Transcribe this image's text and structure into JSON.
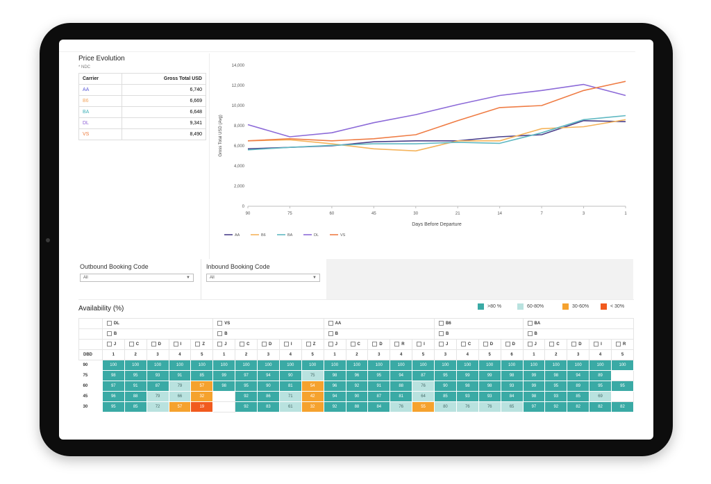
{
  "price_evolution": {
    "title": "Price Evolution",
    "note": "* NDC",
    "headers": {
      "carrier": "Carrier",
      "gross": "Gross Total USD"
    },
    "rows": [
      {
        "carrier": "AA",
        "value": "6,740",
        "color": "#5b5bd6"
      },
      {
        "carrier": "B6",
        "value": "6,669",
        "color": "#f2a55f"
      },
      {
        "carrier": "BA",
        "value": "6,648",
        "color": "#3fb0b8"
      },
      {
        "carrier": "DL",
        "value": "9,341",
        "color": "#8b5cd6"
      },
      {
        "carrier": "VS",
        "value": "8,490",
        "color": "#ee7b3c"
      }
    ]
  },
  "chart_data": {
    "type": "line",
    "title": "",
    "xlabel": "Days Before Departure",
    "ylabel": "Gross Total USD (Avg)",
    "x": [
      "90",
      "75",
      "60",
      "45",
      "30",
      "21",
      "14",
      "7",
      "3",
      "1"
    ],
    "ylim": [
      0,
      14000
    ],
    "yticks": [
      "0",
      "2,000",
      "4,000",
      "6,000",
      "8,000",
      "10,000",
      "12,000",
      "14,000"
    ],
    "legend_position": "bottom-left",
    "grid": false,
    "series": [
      {
        "name": "AA",
        "color": "#4a3f8a",
        "values": [
          5700,
          5850,
          6000,
          6400,
          6500,
          6500,
          6900,
          7100,
          8500,
          8400
        ]
      },
      {
        "name": "B6",
        "color": "#f5b35a",
        "values": [
          6500,
          6600,
          6200,
          5700,
          5500,
          6500,
          6500,
          7700,
          7900,
          8600
        ]
      },
      {
        "name": "BA",
        "color": "#5fb8c2",
        "values": [
          5600,
          5850,
          6050,
          6200,
          6200,
          6350,
          6250,
          7300,
          8600,
          9000
        ]
      },
      {
        "name": "DL",
        "color": "#8c6ad8",
        "values": [
          8100,
          6900,
          7300,
          8300,
          9100,
          10100,
          11000,
          11500,
          12100,
          11000
        ]
      },
      {
        "name": "VS",
        "color": "#ef7c44",
        "values": [
          6500,
          6700,
          6500,
          6700,
          7100,
          8500,
          9800,
          10000,
          11500,
          12400
        ]
      }
    ]
  },
  "booking": {
    "outbound_label": "Outbound Booking Code",
    "outbound_value": "All",
    "inbound_label": "Inbound Booking Code",
    "inbound_value": "All"
  },
  "availability": {
    "title": "Availability (%)",
    "legend": [
      {
        "label": ">80 %",
        "color": "#3aaaa5"
      },
      {
        "label": "60-80%",
        "color": "#b9e2df"
      },
      {
        "label": "30-60%",
        "color": "#f5a22e"
      },
      {
        "label": "< 30%",
        "color": "#f15a1e"
      }
    ],
    "dbd_label": "DBD",
    "carriers": [
      {
        "name": "DL",
        "sub": "B",
        "codes": [
          "J",
          "C",
          "D",
          "I",
          "Z"
        ],
        "nums": [
          "1",
          "2",
          "3",
          "4",
          "5"
        ]
      },
      {
        "name": "VS",
        "sub": "B",
        "codes": [
          "J",
          "C",
          "D",
          "I",
          "Z"
        ],
        "nums": [
          "1",
          "2",
          "3",
          "4",
          "5"
        ]
      },
      {
        "name": "AA",
        "sub": "B",
        "codes": [
          "J",
          "C",
          "D",
          "R",
          "I"
        ],
        "nums": [
          "1",
          "2",
          "3",
          "4",
          "5"
        ]
      },
      {
        "name": "B6",
        "sub": "B",
        "codes": [
          "J",
          "C",
          "D"
        ],
        "nums": [
          "4",
          "5",
          "6"
        ],
        "lead": [
          "3"
        ],
        "lead_codes": [
          "J"
        ]
      },
      {
        "name": "BA",
        "sub": "B",
        "codes": [
          "J",
          "C",
          "D",
          "I",
          "R"
        ],
        "nums": [
          "1",
          "2",
          "3",
          "4",
          "5"
        ]
      }
    ],
    "columns": [
      "J",
      "C",
      "D",
      "I",
      "Z",
      "J",
      "C",
      "D",
      "I",
      "Z",
      "J",
      "C",
      "D",
      "R",
      "I",
      "J",
      "C",
      "D",
      "D",
      "J",
      "C",
      "D",
      "I",
      "R"
    ],
    "column_nums": [
      "1",
      "2",
      "3",
      "4",
      "5",
      "1",
      "2",
      "3",
      "4",
      "5",
      "1",
      "2",
      "3",
      "4",
      "5",
      "3",
      "4",
      "5",
      "6",
      "1",
      "2",
      "3",
      "4",
      "5"
    ],
    "rows": [
      {
        "dbd": "90",
        "cells": [
          "100",
          "100",
          "100",
          "100",
          "100",
          "100",
          "100",
          "100",
          "100",
          "100",
          "100",
          "100",
          "100",
          "100",
          "100",
          "100",
          "100",
          "100",
          "100",
          "100",
          "100",
          "100",
          "100",
          "100"
        ]
      },
      {
        "dbd": "75",
        "cells": [
          "98",
          "95",
          "93",
          "91",
          "85",
          "99",
          "97",
          "94",
          "90",
          "75",
          "98",
          "96",
          "95",
          "94",
          "87",
          "95",
          "99",
          "99",
          "98",
          "99",
          "98",
          "94",
          "89",
          ""
        ]
      },
      {
        "dbd": "60",
        "cells": [
          "97",
          "91",
          "87",
          "79",
          "57",
          "98",
          "95",
          "90",
          "81",
          "54",
          "96",
          "92",
          "91",
          "88",
          "76",
          "90",
          "98",
          "98",
          "93",
          "99",
          "95",
          "89",
          "95",
          "95"
        ]
      },
      {
        "dbd": "45",
        "cells": [
          "96",
          "88",
          "79",
          "66",
          "32",
          "",
          "92",
          "86",
          "71",
          "42",
          "94",
          "90",
          "87",
          "81",
          "64",
          "85",
          "93",
          "93",
          "84",
          "98",
          "93",
          "85",
          "69",
          ""
        ]
      },
      {
        "dbd": "30",
        "cells": [
          "95",
          "85",
          "72",
          "57",
          "19",
          "",
          "92",
          "83",
          "61",
          "32",
          "92",
          "88",
          "84",
          "76",
          "55",
          "80",
          "76",
          "76",
          "65",
          "97",
          "92",
          "82",
          "82",
          "82"
        ]
      }
    ]
  }
}
